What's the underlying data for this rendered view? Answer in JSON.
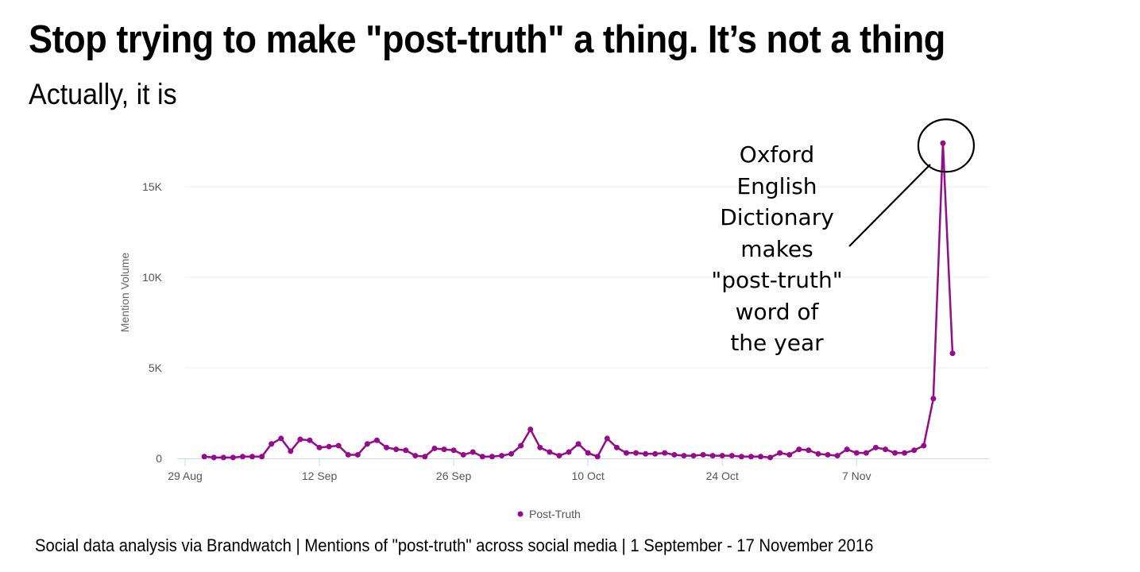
{
  "header": {
    "title": "Stop trying to make \"post-truth\" a thing. It’s not a thing",
    "subtitle": "Actually, it is"
  },
  "annotation": {
    "lines": [
      "Oxford",
      "English",
      "Dictionary",
      "makes",
      "\"post-truth\"",
      "word of",
      "the year"
    ]
  },
  "caption": "Social data analysis via Brandwatch | Mentions of \"post-truth\" across social media | 1 September - 17 November 2016",
  "colors": {
    "series": "#960a8c",
    "grid": "#eeeeee",
    "axis": "#ccd6eb",
    "annotation": "#000000"
  },
  "chart_data": {
    "type": "line",
    "title": "Stop trying to make \"post-truth\" a thing. It’s not a thing",
    "subtitle": "Actually, it is",
    "xlabel": "",
    "ylabel": "Mention Volume",
    "x_start": "2016-09-01",
    "x_end": "2016-11-17",
    "x_range_days_from_29_aug": [
      0,
      84
    ],
    "x_ticks": [
      {
        "label": "29 Aug",
        "day": 0
      },
      {
        "label": "12 Sep",
        "day": 14
      },
      {
        "label": "26 Sep",
        "day": 28
      },
      {
        "label": "10 Oct",
        "day": 42
      },
      {
        "label": "24 Oct",
        "day": 56
      },
      {
        "label": "7 Nov",
        "day": 70
      }
    ],
    "ylim": [
      0,
      18000
    ],
    "y_ticks": [
      {
        "label": "0",
        "value": 0
      },
      {
        "label": "5K",
        "value": 5000
      },
      {
        "label": "10K",
        "value": 10000
      },
      {
        "label": "15K",
        "value": 15000
      }
    ],
    "grid": true,
    "legend_position": "bottom-center",
    "series": [
      {
        "name": "Post-Truth",
        "first_day_from_29_aug": 3,
        "values": [
          100,
          50,
          50,
          50,
          100,
          100,
          100,
          800,
          1100,
          400,
          1050,
          1000,
          600,
          650,
          700,
          200,
          200,
          800,
          1000,
          600,
          500,
          450,
          150,
          100,
          550,
          500,
          450,
          200,
          350,
          100,
          100,
          150,
          250,
          700,
          1600,
          600,
          350,
          150,
          350,
          800,
          300,
          100,
          1100,
          600,
          300,
          300,
          250,
          250,
          300,
          200,
          150,
          150,
          200,
          150,
          150,
          150,
          100,
          100,
          100,
          50,
          300,
          200,
          500,
          450,
          250,
          200,
          150,
          500,
          300,
          300,
          600,
          500,
          300,
          300,
          450,
          700,
          3300,
          17400,
          5800
        ]
      }
    ],
    "annotations": [
      {
        "text": "Oxford English Dictionary makes \"post-truth\" word of the year",
        "target_value": 17400
      }
    ]
  }
}
